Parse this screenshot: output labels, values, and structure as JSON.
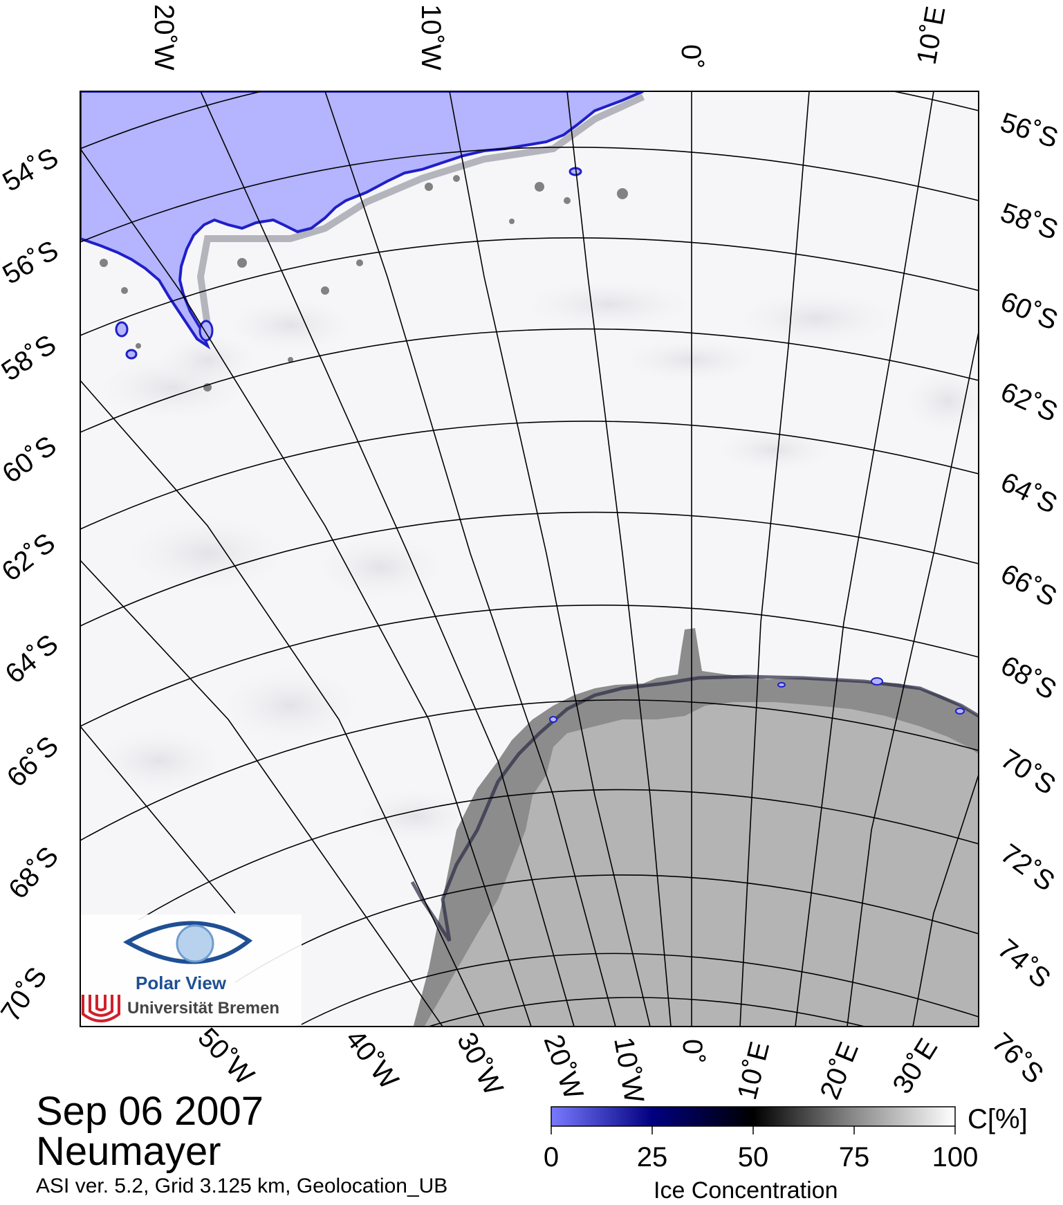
{
  "map": {
    "top_lon_labels": [
      "20˚W",
      "10˚W",
      "0˚",
      "10˚E"
    ],
    "left_lat_labels": [
      "54˚S",
      "56˚S",
      "58˚S",
      "60˚S",
      "62˚S",
      "64˚S",
      "66˚S",
      "68˚S",
      "70˚S"
    ],
    "right_lat_labels": [
      "56˚S",
      "58˚S",
      "60˚S",
      "62˚S",
      "64˚S",
      "66˚S",
      "68˚S",
      "70˚S",
      "72˚S",
      "74˚S",
      "76˚S"
    ],
    "bottom_lon_labels": [
      "50˚W",
      "40˚W",
      "30˚W",
      "20˚W",
      "10˚W",
      "0˚",
      "10˚E",
      "20˚E",
      "30˚E"
    ]
  },
  "logo": {
    "name": "Polar View",
    "institution": "Universität Bremen"
  },
  "caption": {
    "date": "Sep 06 2007",
    "station": "Neumayer",
    "info": "ASI ver. 5.2,  Grid 3.125 km, Geolocation_UB"
  },
  "colorbar": {
    "unit": "C[%]",
    "title": "Ice Concentration",
    "ticks": [
      "0",
      "25",
      "50",
      "75",
      "100"
    ],
    "colors": [
      "#7a7aff",
      "#000080",
      "#000000",
      "#888888",
      "#ffffff"
    ]
  },
  "colors": {
    "open_water": "#b4b4ff",
    "ice_edge": "#2a2ad8",
    "high_ice": "#ffffff",
    "ice_shelf": "#8c8c8c",
    "land": "#b4b4b4",
    "logo_blue": "#1f4f94",
    "logo_red": "#d0202a"
  }
}
